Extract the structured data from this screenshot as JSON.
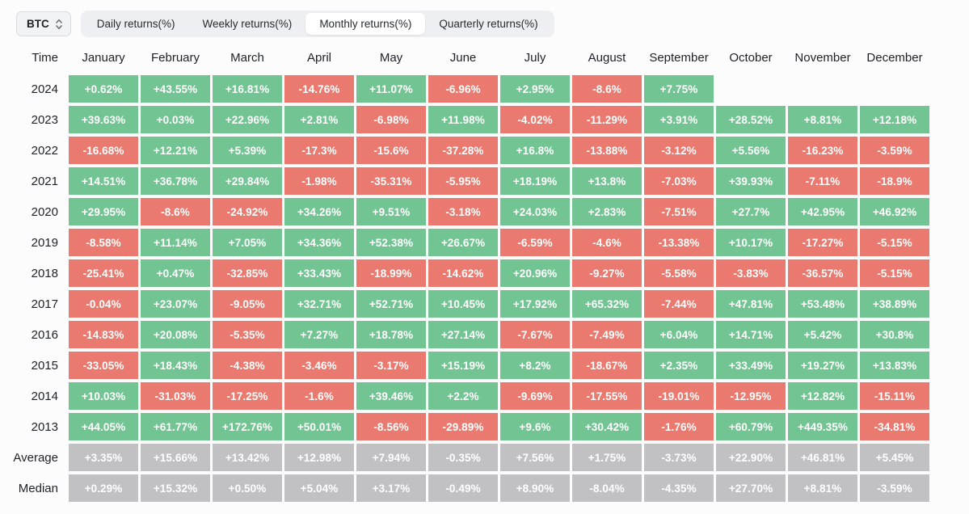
{
  "controls": {
    "asset_select": {
      "value": "BTC"
    },
    "tabs": [
      {
        "label": "Daily returns(%)",
        "active": false
      },
      {
        "label": "Weekly returns(%)",
        "active": false
      },
      {
        "label": "Monthly returns(%)",
        "active": true
      },
      {
        "label": "Quarterly returns(%)",
        "active": false
      }
    ]
  },
  "table": {
    "time_header": "Time",
    "months": [
      "January",
      "February",
      "March",
      "April",
      "May",
      "June",
      "July",
      "August",
      "September",
      "October",
      "November",
      "December"
    ],
    "rows": [
      {
        "label": "2024",
        "kind": "year",
        "values": [
          "+0.62%",
          "+43.55%",
          "+16.81%",
          "-14.76%",
          "+11.07%",
          "-6.96%",
          "+2.95%",
          "-8.6%",
          "+7.75%",
          null,
          null,
          null
        ]
      },
      {
        "label": "2023",
        "kind": "year",
        "values": [
          "+39.63%",
          "+0.03%",
          "+22.96%",
          "+2.81%",
          "-6.98%",
          "+11.98%",
          "-4.02%",
          "-11.29%",
          "+3.91%",
          "+28.52%",
          "+8.81%",
          "+12.18%"
        ]
      },
      {
        "label": "2022",
        "kind": "year",
        "values": [
          "-16.68%",
          "+12.21%",
          "+5.39%",
          "-17.3%",
          "-15.6%",
          "-37.28%",
          "+16.8%",
          "-13.88%",
          "-3.12%",
          "+5.56%",
          "-16.23%",
          "-3.59%"
        ]
      },
      {
        "label": "2021",
        "kind": "year",
        "values": [
          "+14.51%",
          "+36.78%",
          "+29.84%",
          "-1.98%",
          "-35.31%",
          "-5.95%",
          "+18.19%",
          "+13.8%",
          "-7.03%",
          "+39.93%",
          "-7.11%",
          "-18.9%"
        ]
      },
      {
        "label": "2020",
        "kind": "year",
        "values": [
          "+29.95%",
          "-8.6%",
          "-24.92%",
          "+34.26%",
          "+9.51%",
          "-3.18%",
          "+24.03%",
          "+2.83%",
          "-7.51%",
          "+27.7%",
          "+42.95%",
          "+46.92%"
        ]
      },
      {
        "label": "2019",
        "kind": "year",
        "values": [
          "-8.58%",
          "+11.14%",
          "+7.05%",
          "+34.36%",
          "+52.38%",
          "+26.67%",
          "-6.59%",
          "-4.6%",
          "-13.38%",
          "+10.17%",
          "-17.27%",
          "-5.15%"
        ]
      },
      {
        "label": "2018",
        "kind": "year",
        "values": [
          "-25.41%",
          "+0.47%",
          "-32.85%",
          "+33.43%",
          "-18.99%",
          "-14.62%",
          "+20.96%",
          "-9.27%",
          "-5.58%",
          "-3.83%",
          "-36.57%",
          "-5.15%"
        ]
      },
      {
        "label": "2017",
        "kind": "year",
        "values": [
          "-0.04%",
          "+23.07%",
          "-9.05%",
          "+32.71%",
          "+52.71%",
          "+10.45%",
          "+17.92%",
          "+65.32%",
          "-7.44%",
          "+47.81%",
          "+53.48%",
          "+38.89%"
        ]
      },
      {
        "label": "2016",
        "kind": "year",
        "values": [
          "-14.83%",
          "+20.08%",
          "-5.35%",
          "+7.27%",
          "+18.78%",
          "+27.14%",
          "-7.67%",
          "-7.49%",
          "+6.04%",
          "+14.71%",
          "+5.42%",
          "+30.8%"
        ]
      },
      {
        "label": "2015",
        "kind": "year",
        "values": [
          "-33.05%",
          "+18.43%",
          "-4.38%",
          "-3.46%",
          "-3.17%",
          "+15.19%",
          "+8.2%",
          "-18.67%",
          "+2.35%",
          "+33.49%",
          "+19.27%",
          "+13.83%"
        ]
      },
      {
        "label": "2014",
        "kind": "year",
        "values": [
          "+10.03%",
          "-31.03%",
          "-17.25%",
          "-1.6%",
          "+39.46%",
          "+2.2%",
          "-9.69%",
          "-17.55%",
          "-19.01%",
          "-12.95%",
          "+12.82%",
          "-15.11%"
        ]
      },
      {
        "label": "2013",
        "kind": "year",
        "values": [
          "+44.05%",
          "+61.77%",
          "+172.76%",
          "+50.01%",
          "-8.56%",
          "-29.89%",
          "+9.6%",
          "+30.42%",
          "-1.76%",
          "+60.79%",
          "+449.35%",
          "-34.81%"
        ]
      },
      {
        "label": "Average",
        "kind": "summary",
        "values": [
          "+3.35%",
          "+15.66%",
          "+13.42%",
          "+12.98%",
          "+7.94%",
          "-0.35%",
          "+7.56%",
          "+1.75%",
          "-3.73%",
          "+22.90%",
          "+46.81%",
          "+5.45%"
        ]
      },
      {
        "label": "Median",
        "kind": "summary",
        "values": [
          "+0.29%",
          "+15.32%",
          "+0.50%",
          "+5.04%",
          "+3.17%",
          "-0.49%",
          "+8.90%",
          "-8.04%",
          "-4.35%",
          "+27.70%",
          "+8.81%",
          "-3.59%"
        ]
      }
    ]
  },
  "colors": {
    "positive": "#72c593",
    "negative": "#ea7a6f",
    "summary": "#c1c1c3",
    "page_bg": "#fcfcfd"
  }
}
